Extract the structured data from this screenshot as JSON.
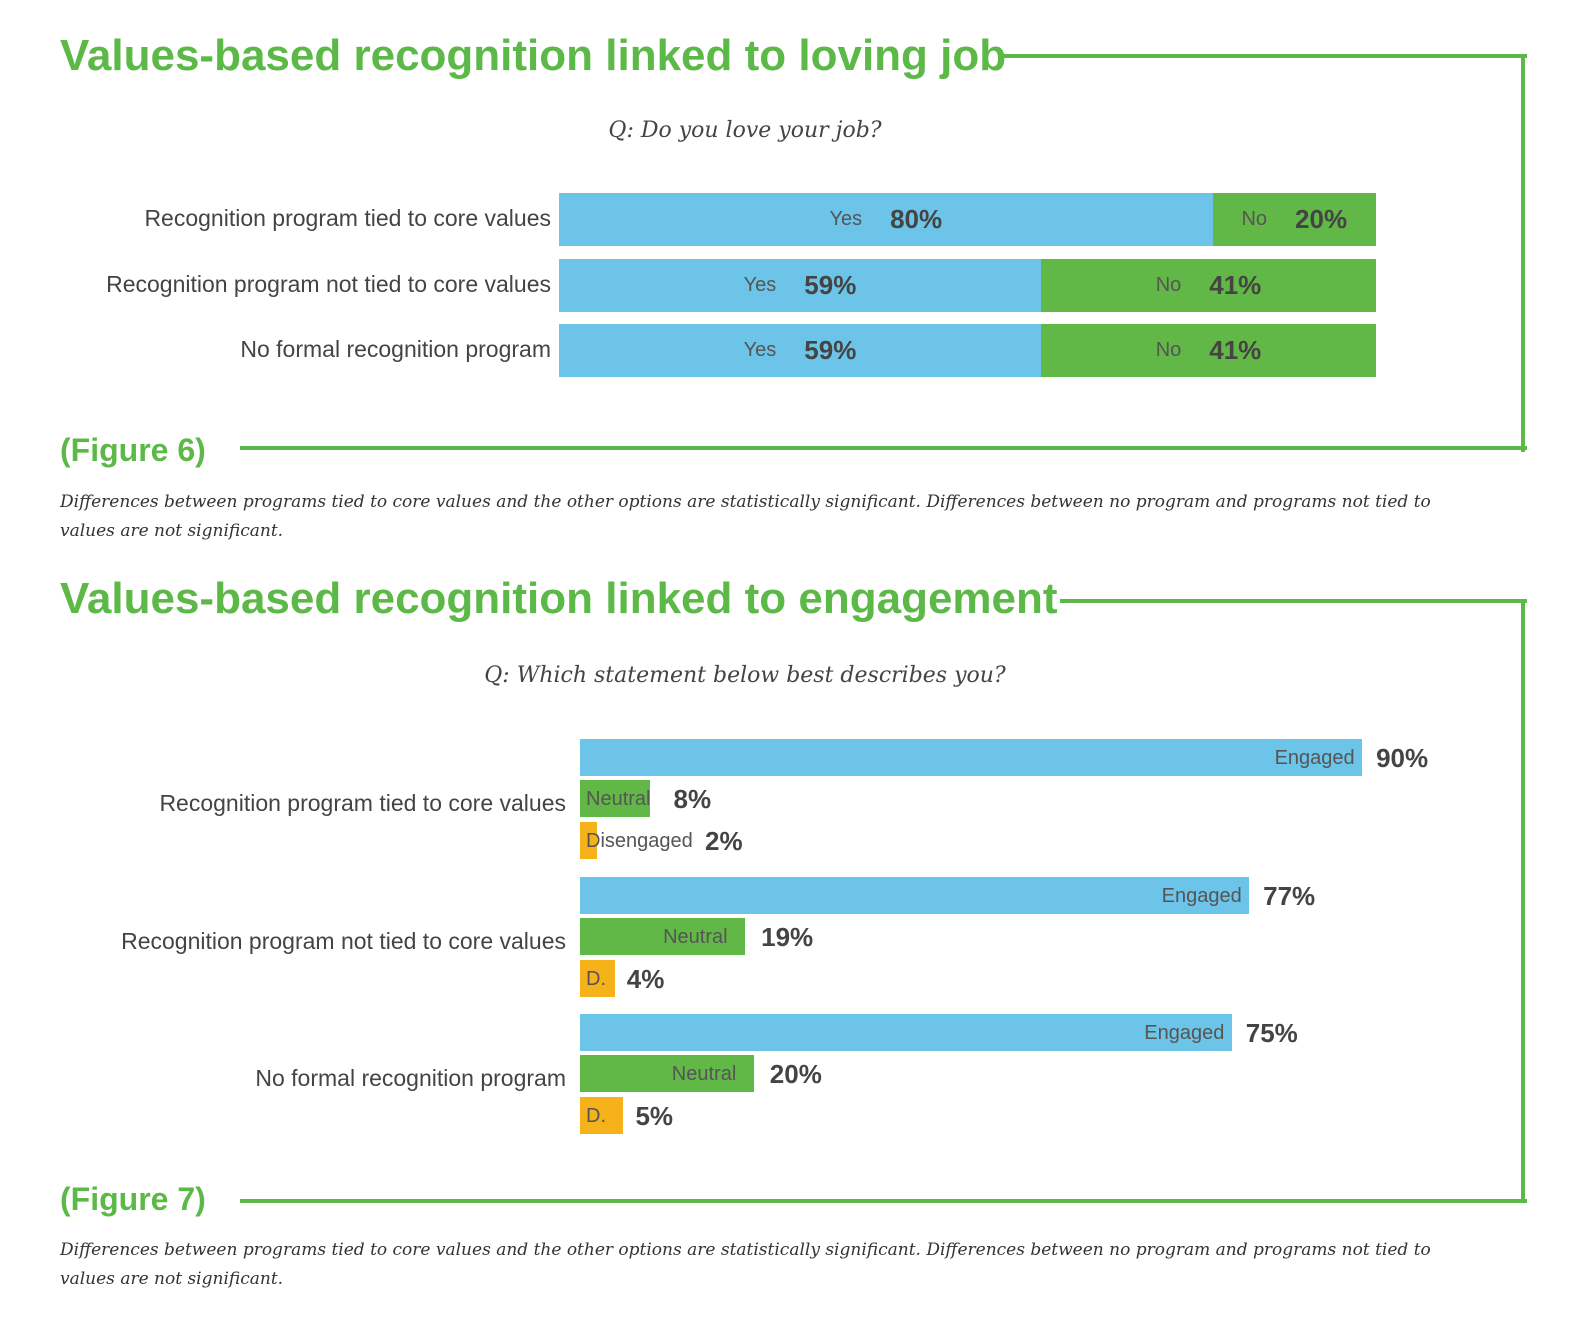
{
  "colors": {
    "yes": "#6cc4e8",
    "no": "#62b846",
    "engaged": "#6cc4e8",
    "neutral": "#62b846",
    "disengaged": "#f5b21b",
    "accent": "#5db947"
  },
  "chart_data": [
    {
      "type": "bar",
      "orientation": "horizontal-stacked",
      "title": "Values-based recognition linked to loving job",
      "question": "Q: Do you love your job?",
      "figure": "(Figure 6)",
      "note": "Differences between programs tied to core values and the other options are statistically significant. Differences between no program and programs not tied to values are not significant.",
      "categories": [
        "Recognition program tied to core values",
        "Recognition program not tied to core values",
        "No formal recognition program"
      ],
      "series": [
        {
          "name": "Yes",
          "values": [
            80,
            59,
            59
          ],
          "labels": [
            "80%",
            "59%",
            "59%"
          ]
        },
        {
          "name": "No",
          "values": [
            20,
            41,
            41
          ],
          "labels": [
            "20%",
            "41%",
            "41%"
          ]
        }
      ]
    },
    {
      "type": "bar",
      "orientation": "horizontal-grouped",
      "title": "Values-based recognition linked to engagement",
      "question": "Q: Which statement below best describes you?",
      "figure": "(Figure 7)",
      "note": "Differences between programs tied to core values and the other options are statistically significant. Differences between no program and programs not tied to values are not significant.",
      "categories": [
        "Recognition program tied to core values",
        "Recognition program not tied to core values",
        "No formal recognition program"
      ],
      "series": [
        {
          "name": "Engaged",
          "values": [
            90,
            77,
            75
          ],
          "bar_labels": [
            "Engaged",
            "Engaged",
            "Engaged"
          ],
          "labels": [
            "90%",
            "77%",
            "75%"
          ]
        },
        {
          "name": "Neutral",
          "values": [
            8,
            19,
            20
          ],
          "bar_labels": [
            "Neutral",
            "Neutral",
            "Neutral"
          ],
          "labels": [
            "8%",
            "19%",
            "20%"
          ]
        },
        {
          "name": "Disengaged",
          "values": [
            2,
            4,
            5
          ],
          "bar_labels": [
            "Disengaged",
            "D.",
            "D."
          ],
          "labels": [
            "2%",
            "4%",
            "5%"
          ]
        }
      ]
    }
  ]
}
